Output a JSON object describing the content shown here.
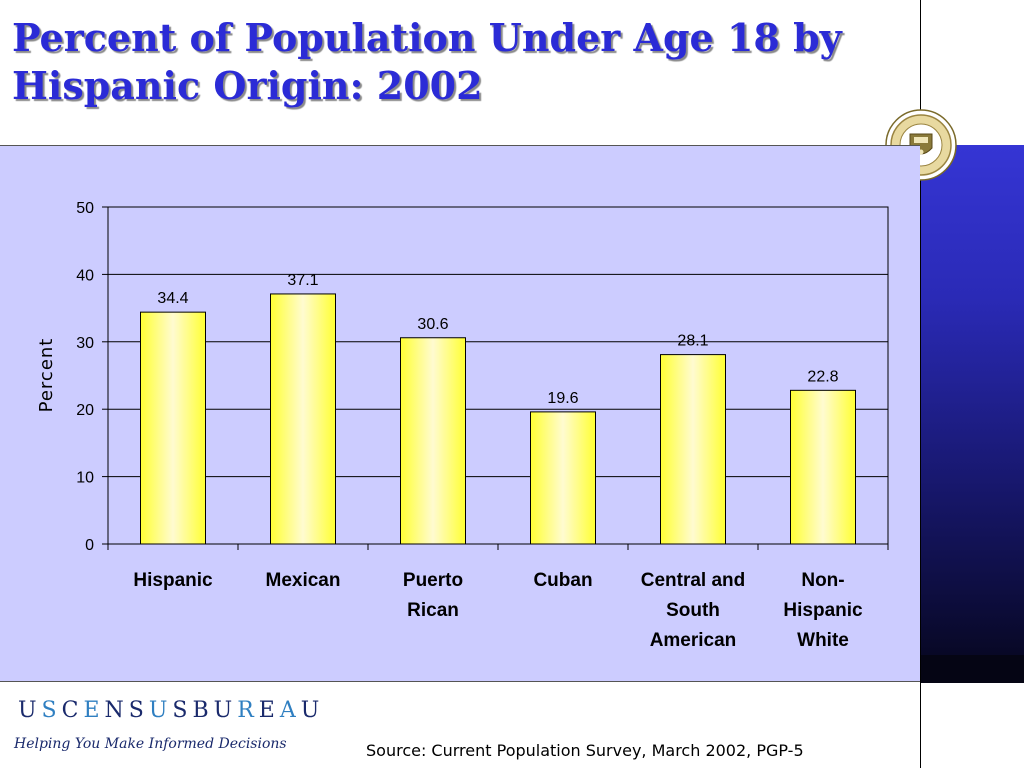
{
  "slide": {
    "title_lines": [
      "Percent of Population Under Age 18 by",
      "Hispanic Origin:  2002"
    ],
    "source": "Source:  Current Population Survey, March 2002, PGP-5",
    "brand": {
      "letters": [
        "U",
        "S",
        "C",
        "E",
        "N",
        "S",
        "U",
        "S",
        "B",
        "U",
        "R",
        "E",
        "A",
        "U"
      ],
      "colors": [
        "#1a2a6c",
        "#2f7fc1",
        "#1a2a6c",
        "#2f7fc1",
        "#1a2a6c",
        "#1a2a6c",
        "#2f7fc1",
        "#1a2a6c",
        "#1a2a6c",
        "#1a2a6c",
        "#2f7fc1",
        "#1a2a6c",
        "#2f7fc1",
        "#1a2a6c"
      ]
    },
    "tagline": "Helping You Make Informed Decisions",
    "colors": {
      "title": "#2b2bd6",
      "panel": "#ccccff",
      "bar_top": "#ffff33",
      "bar_mid": "#fffbd0",
      "band": "#2a2ab6"
    }
  },
  "chart_data": {
    "type": "bar",
    "title": "",
    "xlabel": "",
    "ylabel": "Percent",
    "ylim": [
      0,
      50
    ],
    "yticks": [
      0,
      10,
      20,
      30,
      40,
      50
    ],
    "grid": true,
    "categories": [
      [
        "Hispanic"
      ],
      [
        "Mexican"
      ],
      [
        "Puerto",
        "Rican"
      ],
      [
        "Cuban"
      ],
      [
        "Central and",
        "South",
        "American"
      ],
      [
        "Non-",
        "Hispanic",
        "White"
      ]
    ],
    "values": [
      34.4,
      37.1,
      30.6,
      19.6,
      28.1,
      22.8
    ],
    "data_labels": [
      "34.4",
      "37.1",
      "30.6",
      "19.6",
      "28.1",
      "22.8"
    ]
  }
}
